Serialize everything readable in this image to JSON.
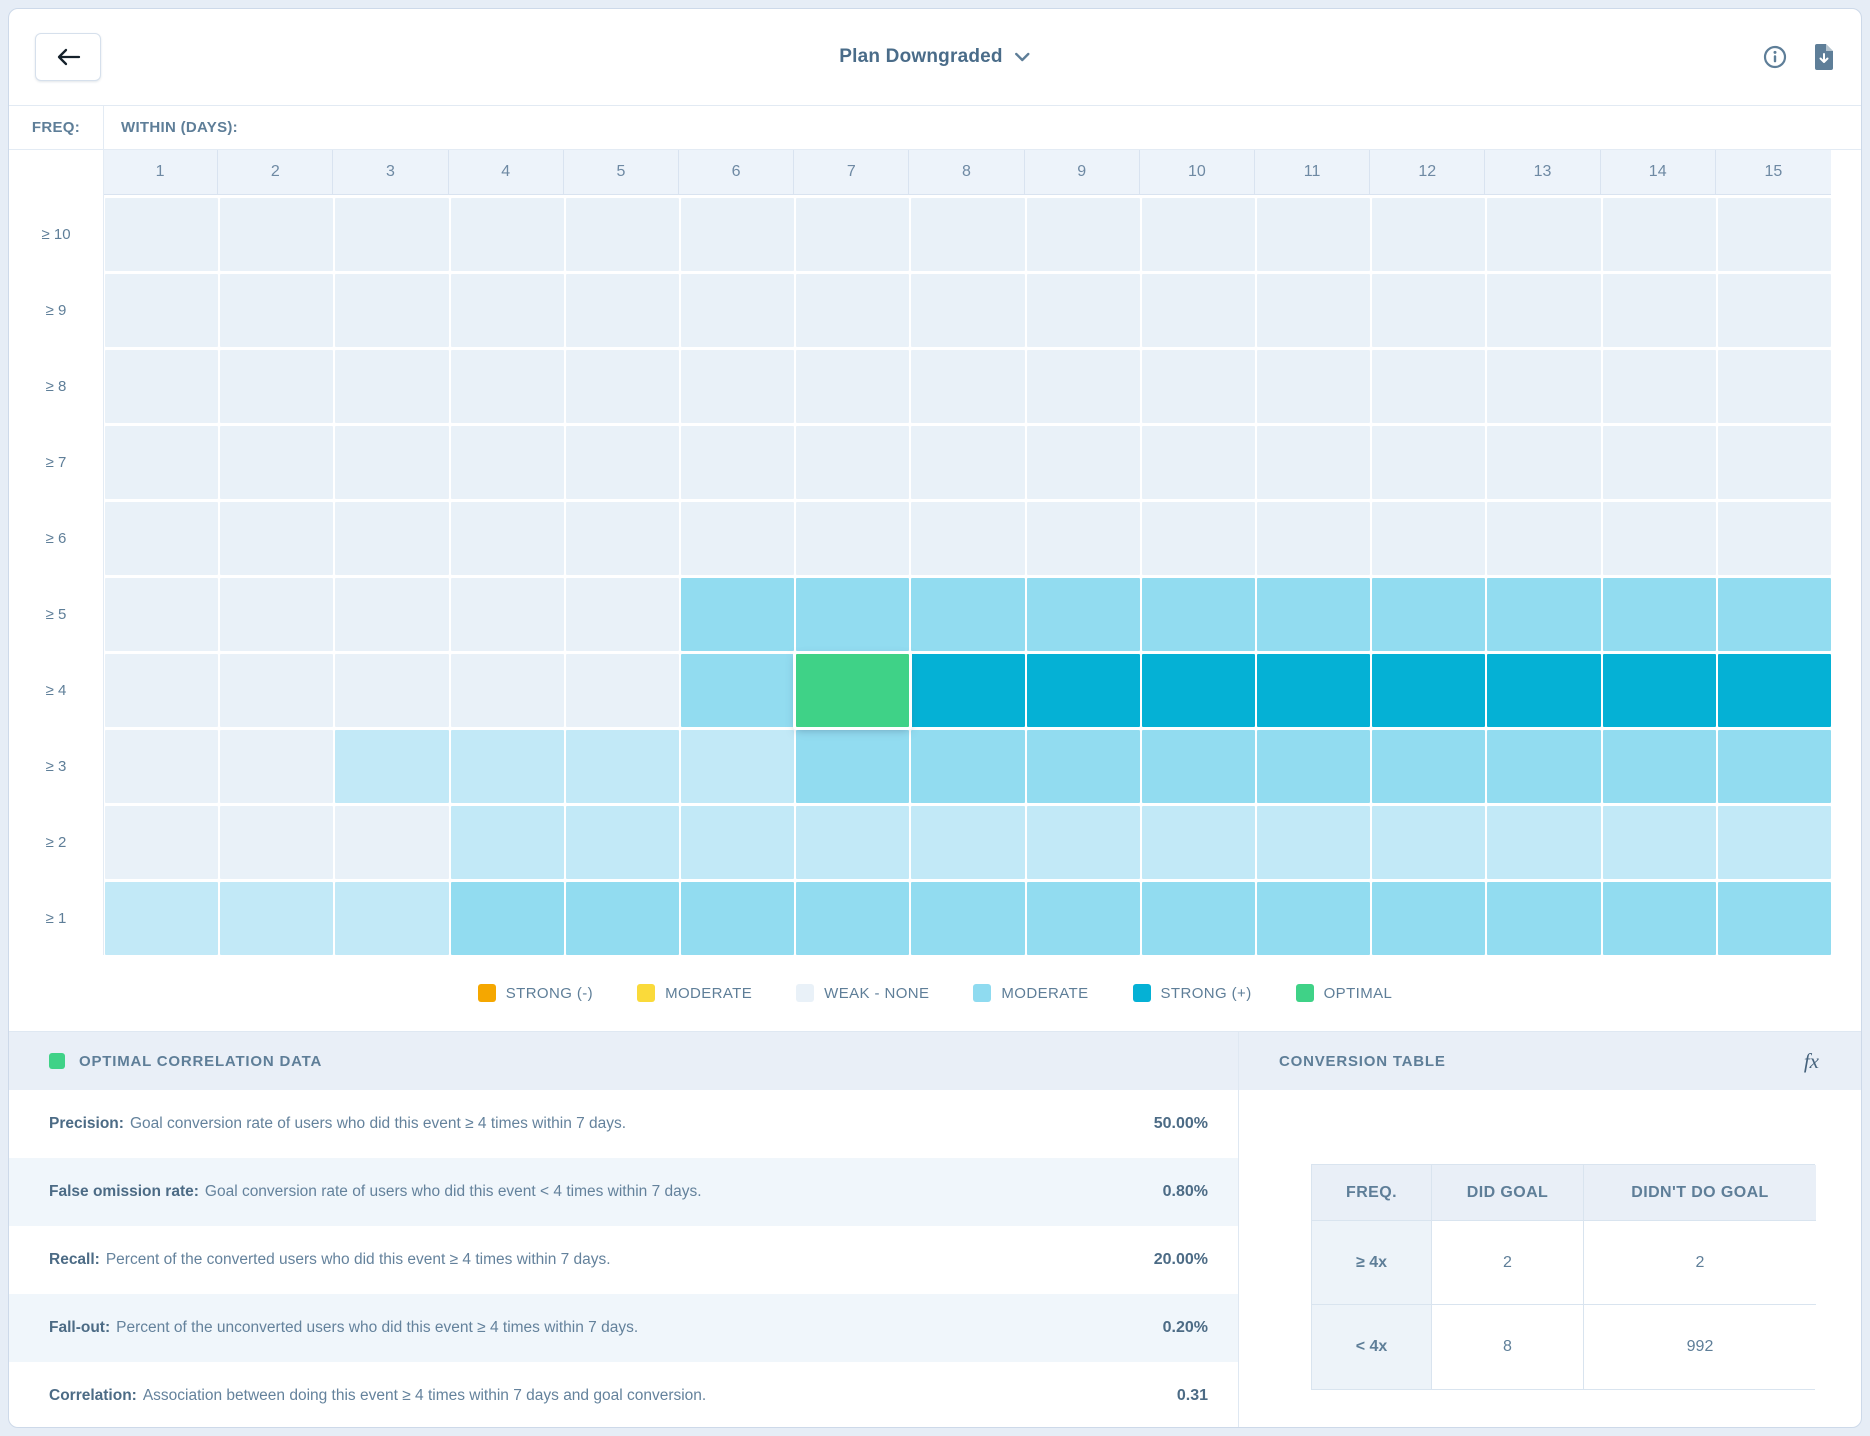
{
  "header": {
    "title": "Plan Downgraded"
  },
  "chart_data": {
    "type": "heatmap",
    "x_axis_label": "WITHIN (DAYS):",
    "y_axis_label": "FREQ:",
    "x": [
      "1",
      "2",
      "3",
      "4",
      "5",
      "6",
      "7",
      "8",
      "9",
      "10",
      "11",
      "12",
      "13",
      "14",
      "15"
    ],
    "levels": {
      "weak": "#E9F1F8",
      "light": "#C2E9F7",
      "moderate": "#92DCF0",
      "strong": "#05B1D5",
      "optimal": "#3FD287"
    },
    "rows": [
      {
        "key": "ge-10",
        "label": "≥ 10",
        "cells": [
          "weak",
          "weak",
          "weak",
          "weak",
          "weak",
          "weak",
          "weak",
          "weak",
          "weak",
          "weak",
          "weak",
          "weak",
          "weak",
          "weak",
          "weak"
        ]
      },
      {
        "key": "ge-9",
        "label": "≥ 9",
        "cells": [
          "weak",
          "weak",
          "weak",
          "weak",
          "weak",
          "weak",
          "weak",
          "weak",
          "weak",
          "weak",
          "weak",
          "weak",
          "weak",
          "weak",
          "weak"
        ]
      },
      {
        "key": "ge-8",
        "label": "≥ 8",
        "cells": [
          "weak",
          "weak",
          "weak",
          "weak",
          "weak",
          "weak",
          "weak",
          "weak",
          "weak",
          "weak",
          "weak",
          "weak",
          "weak",
          "weak",
          "weak"
        ]
      },
      {
        "key": "ge-7",
        "label": "≥ 7",
        "cells": [
          "weak",
          "weak",
          "weak",
          "weak",
          "weak",
          "weak",
          "weak",
          "weak",
          "weak",
          "weak",
          "weak",
          "weak",
          "weak",
          "weak",
          "weak"
        ]
      },
      {
        "key": "ge-6",
        "label": "≥ 6",
        "cells": [
          "weak",
          "weak",
          "weak",
          "weak",
          "weak",
          "weak",
          "weak",
          "weak",
          "weak",
          "weak",
          "weak",
          "weak",
          "weak",
          "weak",
          "weak"
        ]
      },
      {
        "key": "ge-5",
        "label": "≥ 5",
        "cells": [
          "weak",
          "weak",
          "weak",
          "weak",
          "weak",
          "moderate",
          "moderate",
          "moderate",
          "moderate",
          "moderate",
          "moderate",
          "moderate",
          "moderate",
          "moderate",
          "moderate"
        ]
      },
      {
        "key": "ge-4",
        "label": "≥ 4",
        "cells": [
          "weak",
          "weak",
          "weak",
          "weak",
          "weak",
          "moderate",
          "optimal",
          "strong",
          "strong",
          "strong",
          "strong",
          "strong",
          "strong",
          "strong",
          "strong"
        ]
      },
      {
        "key": "ge-3",
        "label": "≥ 3",
        "cells": [
          "weak",
          "weak",
          "light",
          "light",
          "light",
          "light",
          "moderate",
          "moderate",
          "moderate",
          "moderate",
          "moderate",
          "moderate",
          "moderate",
          "moderate",
          "moderate"
        ]
      },
      {
        "key": "ge-2",
        "label": "≥ 2",
        "cells": [
          "weak",
          "weak",
          "weak",
          "light",
          "light",
          "light",
          "light",
          "light",
          "light",
          "light",
          "light",
          "light",
          "light",
          "light",
          "light"
        ]
      },
      {
        "key": "ge-1",
        "label": "≥ 1",
        "cells": [
          "light",
          "light",
          "light",
          "moderate",
          "moderate",
          "moderate",
          "moderate",
          "moderate",
          "moderate",
          "moderate",
          "moderate",
          "moderate",
          "moderate",
          "moderate",
          "moderate"
        ]
      }
    ],
    "selected_cell": {
      "row": "≥ 4",
      "column": "7",
      "level": "optimal"
    }
  },
  "legend": {
    "items": [
      {
        "label": "STRONG (-)",
        "color": "#F5A700"
      },
      {
        "label": "MODERATE",
        "color": "#FADA3A"
      },
      {
        "label": "WEAK - NONE",
        "color": "#E9F1F8"
      },
      {
        "label": "MODERATE",
        "color": "#8FDBF0",
        "textured": true
      },
      {
        "label": "STRONG (+)",
        "color": "#05B1D5"
      },
      {
        "label": "OPTIMAL",
        "color": "#3FD287"
      }
    ]
  },
  "optimal_panel": {
    "title": "OPTIMAL CORRELATION DATA",
    "swatch_color": "#3FD287",
    "metrics": [
      {
        "label": "Precision:",
        "description": "Goal conversion rate of users who did this event ≥ 4 times within 7 days.",
        "value": "50.00%"
      },
      {
        "label": "False omission rate:",
        "description": "Goal conversion rate of users who did this event < 4 times within 7 days.",
        "value": "0.80%"
      },
      {
        "label": "Recall:",
        "description": "Percent of the converted users who did this event ≥ 4 times within 7 days.",
        "value": "20.00%"
      },
      {
        "label": "Fall-out:",
        "description": "Percent of the unconverted users who did this event ≥ 4 times within 7 days.",
        "value": "0.20%"
      },
      {
        "label": "Correlation:",
        "description": "Association between doing this event ≥ 4 times within 7 days and goal conversion.",
        "value": "0.31"
      }
    ]
  },
  "conversion_panel": {
    "title": "CONVERSION TABLE",
    "fx_label": "fx",
    "table": {
      "headers": [
        "FREQ.",
        "DID GOAL",
        "DIDN'T DO GOAL"
      ],
      "rows": [
        {
          "freq": "≥ 4x",
          "did_goal": "2",
          "didnt_do_goal": "2"
        },
        {
          "freq": "< 4x",
          "did_goal": "8",
          "didnt_do_goal": "992"
        }
      ]
    }
  }
}
